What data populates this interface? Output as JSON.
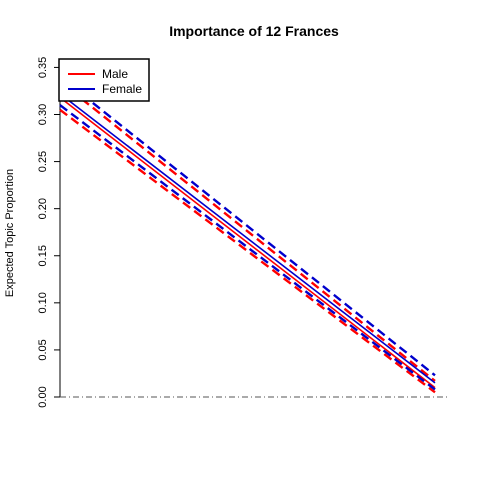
{
  "chart_data": {
    "type": "line",
    "title": "Importance of 12 Frances",
    "xlabel": "",
    "ylabel": "Expected Topic Proportion",
    "x": [
      0,
      1
    ],
    "ylim": [
      0,
      0.36
    ],
    "yticks": [
      "0.00",
      "0.05",
      "0.10",
      "0.15",
      "0.20",
      "0.25",
      "0.30",
      "0.35"
    ],
    "ytick_values": [
      0,
      0.05,
      0.1,
      0.15,
      0.2,
      0.25,
      0.3,
      0.35
    ],
    "reference_line": 0,
    "legend_position": "top-left",
    "colors": {
      "male": "#ff0000",
      "female": "#0000cc",
      "reference": "#555555"
    },
    "series": [
      {
        "name": "Male",
        "color": "#ff0000",
        "values": [
          0.318,
          0.01
        ],
        "lower": [
          0.305,
          0.005
        ],
        "upper": [
          0.335,
          0.017
        ]
      },
      {
        "name": "Female",
        "color": "#0000cc",
        "values": [
          0.322,
          0.015
        ],
        "lower": [
          0.31,
          0.008
        ],
        "upper": [
          0.34,
          0.023
        ]
      }
    ]
  }
}
